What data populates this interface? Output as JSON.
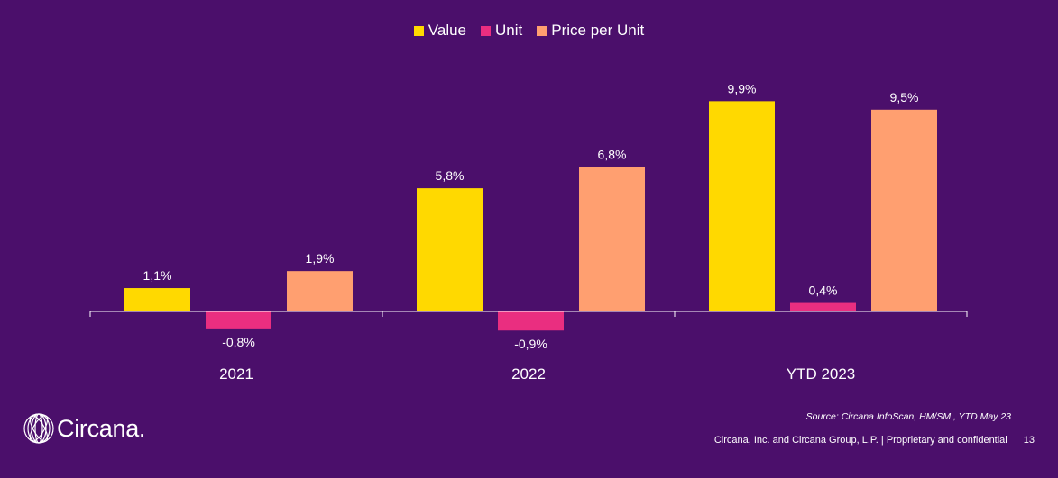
{
  "colors": {
    "background": "#4b0f6b",
    "value": "#ffd900",
    "unit": "#ea2e80",
    "price_per_unit": "#ff9f70",
    "axis": "#ffffff"
  },
  "chart_data": {
    "type": "bar",
    "categories": [
      "2021",
      "2022",
      "YTD 2023"
    ],
    "series": [
      {
        "name": "Value",
        "values": [
          1.1,
          5.8,
          9.9
        ],
        "labels": [
          "1,1%",
          "5,8%",
          "9,9%"
        ],
        "color": "#ffd900"
      },
      {
        "name": "Unit",
        "values": [
          -0.8,
          -0.9,
          0.4
        ],
        "labels": [
          "-0,8%",
          "-0,9%",
          "0,4%"
        ],
        "color": "#ea2e80"
      },
      {
        "name": "Price per Unit",
        "values": [
          1.9,
          6.8,
          9.5
        ],
        "labels": [
          "1,9%",
          "6,8%",
          "9,5%"
        ],
        "color": "#ff9f70"
      }
    ],
    "ylim": [
      -1.5,
      11
    ],
    "grid": false,
    "legend": "top-center"
  },
  "source_text": "Source: Circana InfoScan, HM/SM , YTD May 23",
  "footer": {
    "company": "Circana, Inc. and Circana Group, L.P. |  Proprietary and confidential",
    "page_number": "13"
  },
  "logo": {
    "text": "Circana.",
    "icon": "circana-globe-icon"
  }
}
